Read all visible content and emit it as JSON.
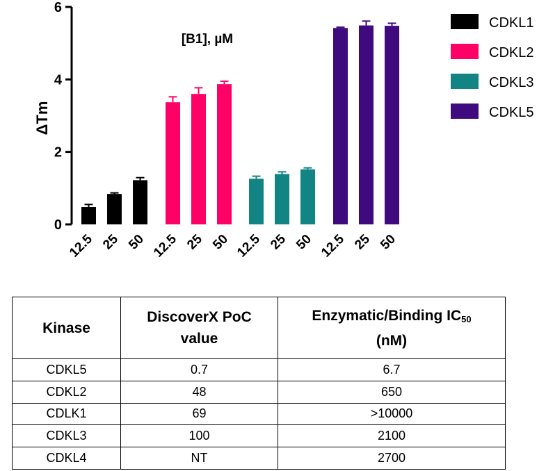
{
  "chart_data": {
    "type": "bar",
    "title": "[B1], µM",
    "xlabel": "",
    "ylabel": "ΔTm",
    "ylim": [
      0,
      6
    ],
    "yticks": [
      0,
      2,
      4,
      6
    ],
    "grid": false,
    "legend_position": "top-right",
    "categories": [
      "12.5",
      "25",
      "50"
    ],
    "series": [
      {
        "name": "CDKL1",
        "color": "#000000",
        "values": [
          0.48,
          0.84,
          1.22
        ],
        "errors": [
          0.07,
          0.03,
          0.07
        ]
      },
      {
        "name": "CDKL2",
        "color": "#FF0066",
        "values": [
          3.37,
          3.6,
          3.87
        ],
        "errors": [
          0.15,
          0.17,
          0.08
        ]
      },
      {
        "name": "CDKL3",
        "color": "#128484",
        "values": [
          1.26,
          1.39,
          1.52
        ],
        "errors": [
          0.07,
          0.06,
          0.04
        ]
      },
      {
        "name": "CDKL5",
        "color": "#3F0A7E",
        "values": [
          5.42,
          5.49,
          5.48
        ],
        "errors": [
          0.02,
          0.12,
          0.07
        ]
      }
    ]
  },
  "table": {
    "headers": {
      "kinase": "Kinase",
      "poc_line1": "DiscoverX PoC",
      "poc_line2": "value",
      "ic_prefix": "Enzymatic/Binding IC",
      "ic_sub": "50",
      "ic_line2": "(nM)"
    },
    "rows": [
      {
        "kinase": "CDKL5",
        "poc": "0.7",
        "ic50": "6.7"
      },
      {
        "kinase": "CDKL2",
        "poc": "48",
        "ic50": "650"
      },
      {
        "kinase": "CDLK1",
        "poc": "69",
        "ic50": ">10000"
      },
      {
        "kinase": "CDKL3",
        "poc": "100",
        "ic50": "2100"
      },
      {
        "kinase": "CDKL4",
        "poc": "NT",
        "ic50": "2700"
      }
    ]
  }
}
